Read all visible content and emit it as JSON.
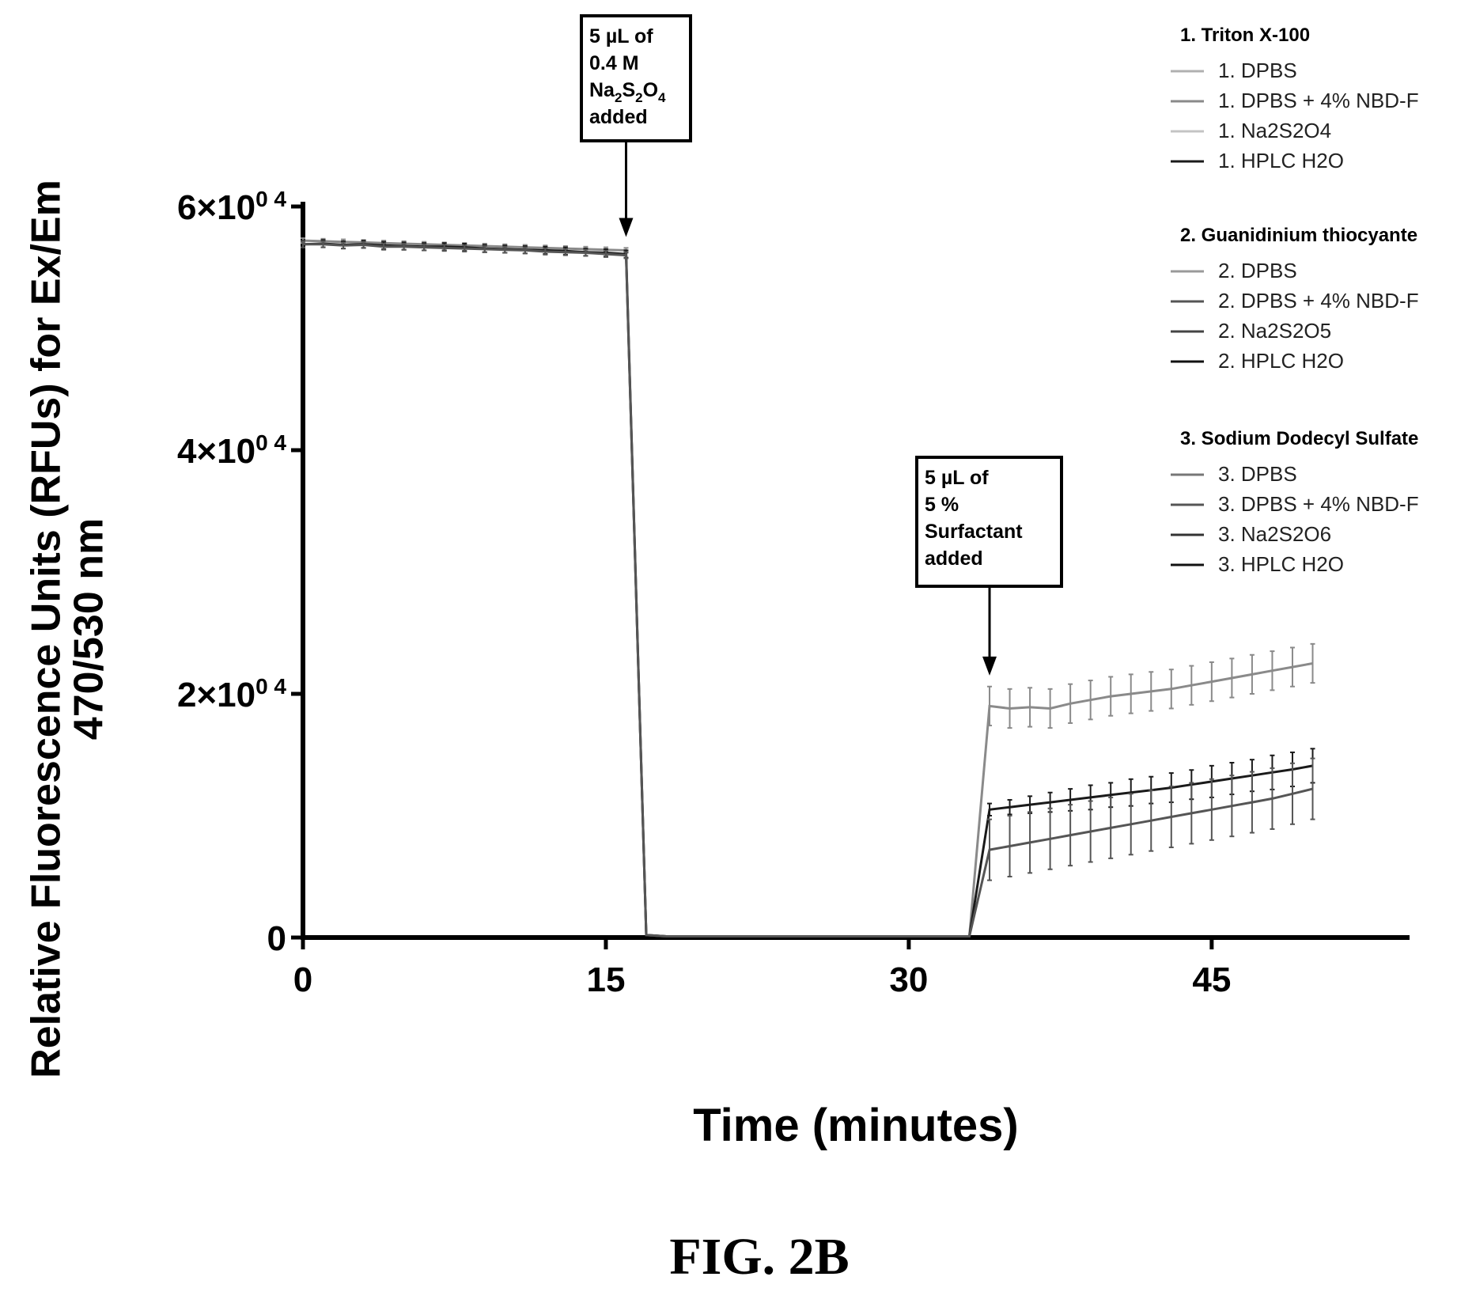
{
  "chart_data": {
    "type": "line",
    "xlabel": "Time (minutes)",
    "ylabel_line1": "Relative Fluorescence Units (RFUs) for Ex/Em",
    "ylabel_line2": "470/530 nm",
    "x_ticks": [
      0,
      15,
      30,
      45
    ],
    "x_tick_labels": [
      "0",
      "15",
      "30",
      "45"
    ],
    "xlim": [
      0,
      55
    ],
    "y_ticks": [
      0,
      20000,
      40000,
      60000
    ],
    "y_tick_labels": [
      {
        "base": "0",
        "exp": ""
      },
      {
        "base": "2×10",
        "exp": "0 4"
      },
      {
        "base": "4×10",
        "exp": "0 4"
      },
      {
        "base": "6×10",
        "exp": "0 4"
      }
    ],
    "ylim": [
      0,
      60000
    ],
    "grid": false,
    "legend_position": "right",
    "legend_groups": [
      {
        "title": "1. Triton X-100",
        "entries": [
          {
            "label": "1. DPBS",
            "color": "#b0b0b0"
          },
          {
            "label": "1. DPBS + 4% NBD-F",
            "color": "#8a8a8a"
          },
          {
            "label": "1. Na2S2O4",
            "color": "#c4c4c4"
          },
          {
            "label": "1. HPLC H2O",
            "color": "#1a1a1a"
          }
        ]
      },
      {
        "title": "2. Guanidinium thiocyante",
        "entries": [
          {
            "label": "2. DPBS",
            "color": "#9a9a9a"
          },
          {
            "label": "2. DPBS + 4% NBD-F",
            "color": "#555555"
          },
          {
            "label": "2. Na2S2O5",
            "color": "#444444"
          },
          {
            "label": "2. HPLC H2O",
            "color": "#111111"
          }
        ]
      },
      {
        "title": "3. Sodium Dodecyl Sulfate",
        "entries": [
          {
            "label": "3. DPBS",
            "color": "#777777"
          },
          {
            "label": "3. DPBS + 4% NBD-F",
            "color": "#555555"
          },
          {
            "label": "3. Na2S2O6",
            "color": "#333333"
          },
          {
            "label": "3. HPLC H2O",
            "color": "#111111"
          }
        ]
      }
    ],
    "series": [
      {
        "color": "#8a8a8a",
        "x": [
          0,
          1,
          2,
          3,
          4,
          5,
          6,
          7,
          8,
          9,
          10,
          11,
          12,
          13,
          14,
          15,
          16,
          17,
          18,
          20,
          25,
          30,
          33,
          34,
          35,
          36,
          37,
          38,
          39,
          40,
          41,
          42,
          43,
          44,
          45,
          46,
          47,
          48,
          49,
          50
        ],
        "y": [
          57200,
          57150,
          57100,
          57050,
          57000,
          56950,
          56900,
          56850,
          56800,
          56750,
          56700,
          56650,
          56600,
          56550,
          56500,
          56450,
          56400,
          200,
          100,
          100,
          100,
          100,
          100,
          19000,
          18800,
          18900,
          18800,
          19200,
          19500,
          19800,
          20000,
          20200,
          20400,
          20700,
          21000,
          21300,
          21600,
          21900,
          22200,
          22500
        ],
        "err": [
          200,
          200,
          200,
          200,
          200,
          200,
          200,
          200,
          200,
          200,
          200,
          200,
          200,
          200,
          200,
          200,
          200,
          0,
          0,
          0,
          0,
          0,
          0,
          1600,
          1600,
          1600,
          1600,
          1600,
          1600,
          1600,
          1600,
          1600,
          1600,
          1600,
          1600,
          1600,
          1600,
          1600,
          1600,
          1600
        ]
      },
      {
        "color": "#1a1a1a",
        "x": [
          0,
          1,
          2,
          3,
          4,
          5,
          6,
          7,
          8,
          9,
          10,
          11,
          12,
          13,
          14,
          15,
          16,
          17,
          18,
          20,
          25,
          30,
          33,
          34,
          35,
          36,
          37,
          38,
          39,
          40,
          41,
          42,
          43,
          44,
          45,
          46,
          47,
          48,
          49,
          50
        ],
        "y": [
          56900,
          56950,
          56850,
          56900,
          56800,
          56750,
          56700,
          56700,
          56650,
          56550,
          56500,
          56450,
          56400,
          56350,
          56250,
          56200,
          56100,
          200,
          100,
          100,
          100,
          100,
          100,
          10500,
          10700,
          10900,
          11100,
          11300,
          11500,
          11700,
          11900,
          12100,
          12300,
          12550,
          12800,
          13050,
          13300,
          13550,
          13800,
          14100
        ],
        "err": [
          300,
          300,
          300,
          300,
          300,
          300,
          300,
          300,
          300,
          300,
          300,
          300,
          300,
          300,
          300,
          300,
          300,
          0,
          0,
          0,
          0,
          0,
          0,
          500,
          600,
          700,
          800,
          900,
          1000,
          1000,
          1100,
          1100,
          1200,
          1200,
          1300,
          1300,
          1300,
          1400,
          1400,
          1400
        ]
      },
      {
        "color": "#555555",
        "x": [
          0,
          1,
          2,
          3,
          4,
          5,
          6,
          7,
          8,
          9,
          10,
          11,
          12,
          13,
          14,
          15,
          16,
          17,
          18,
          20,
          25,
          30,
          33,
          34,
          35,
          36,
          37,
          38,
          39,
          40,
          41,
          42,
          43,
          44,
          45,
          46,
          47,
          48,
          49,
          50
        ],
        "y": [
          56900,
          56900,
          56800,
          56850,
          56700,
          56700,
          56650,
          56600,
          56550,
          56500,
          56450,
          56400,
          56300,
          56250,
          56200,
          56100,
          56000,
          200,
          100,
          100,
          100,
          100,
          100,
          7200,
          7500,
          7800,
          8100,
          8400,
          8700,
          9000,
          9300,
          9600,
          9900,
          10200,
          10500,
          10800,
          11100,
          11400,
          11800,
          12200
        ],
        "err": [
          250,
          250,
          250,
          250,
          250,
          250,
          250,
          250,
          250,
          250,
          250,
          250,
          250,
          250,
          250,
          250,
          250,
          0,
          0,
          0,
          0,
          0,
          0,
          2500,
          2500,
          2500,
          2500,
          2500,
          2500,
          2500,
          2500,
          2500,
          2500,
          2500,
          2500,
          2500,
          2500,
          2500,
          2500,
          2500
        ]
      }
    ],
    "annotations": [
      {
        "lines": [
          "5 µL of",
          "0.4 M"
        ],
        "formula": {
          "parts": [
            "Na",
            "2",
            "S",
            "2",
            "O",
            "4"
          ]
        },
        "last": "added",
        "x": 16,
        "arrow_to_y": 57500
      },
      {
        "lines": [
          "5 µL of",
          "5 %",
          "Surfactant",
          "added"
        ],
        "x": 34,
        "arrow_to_y": 21500
      }
    ]
  },
  "figure_caption": "FIG. 2B"
}
